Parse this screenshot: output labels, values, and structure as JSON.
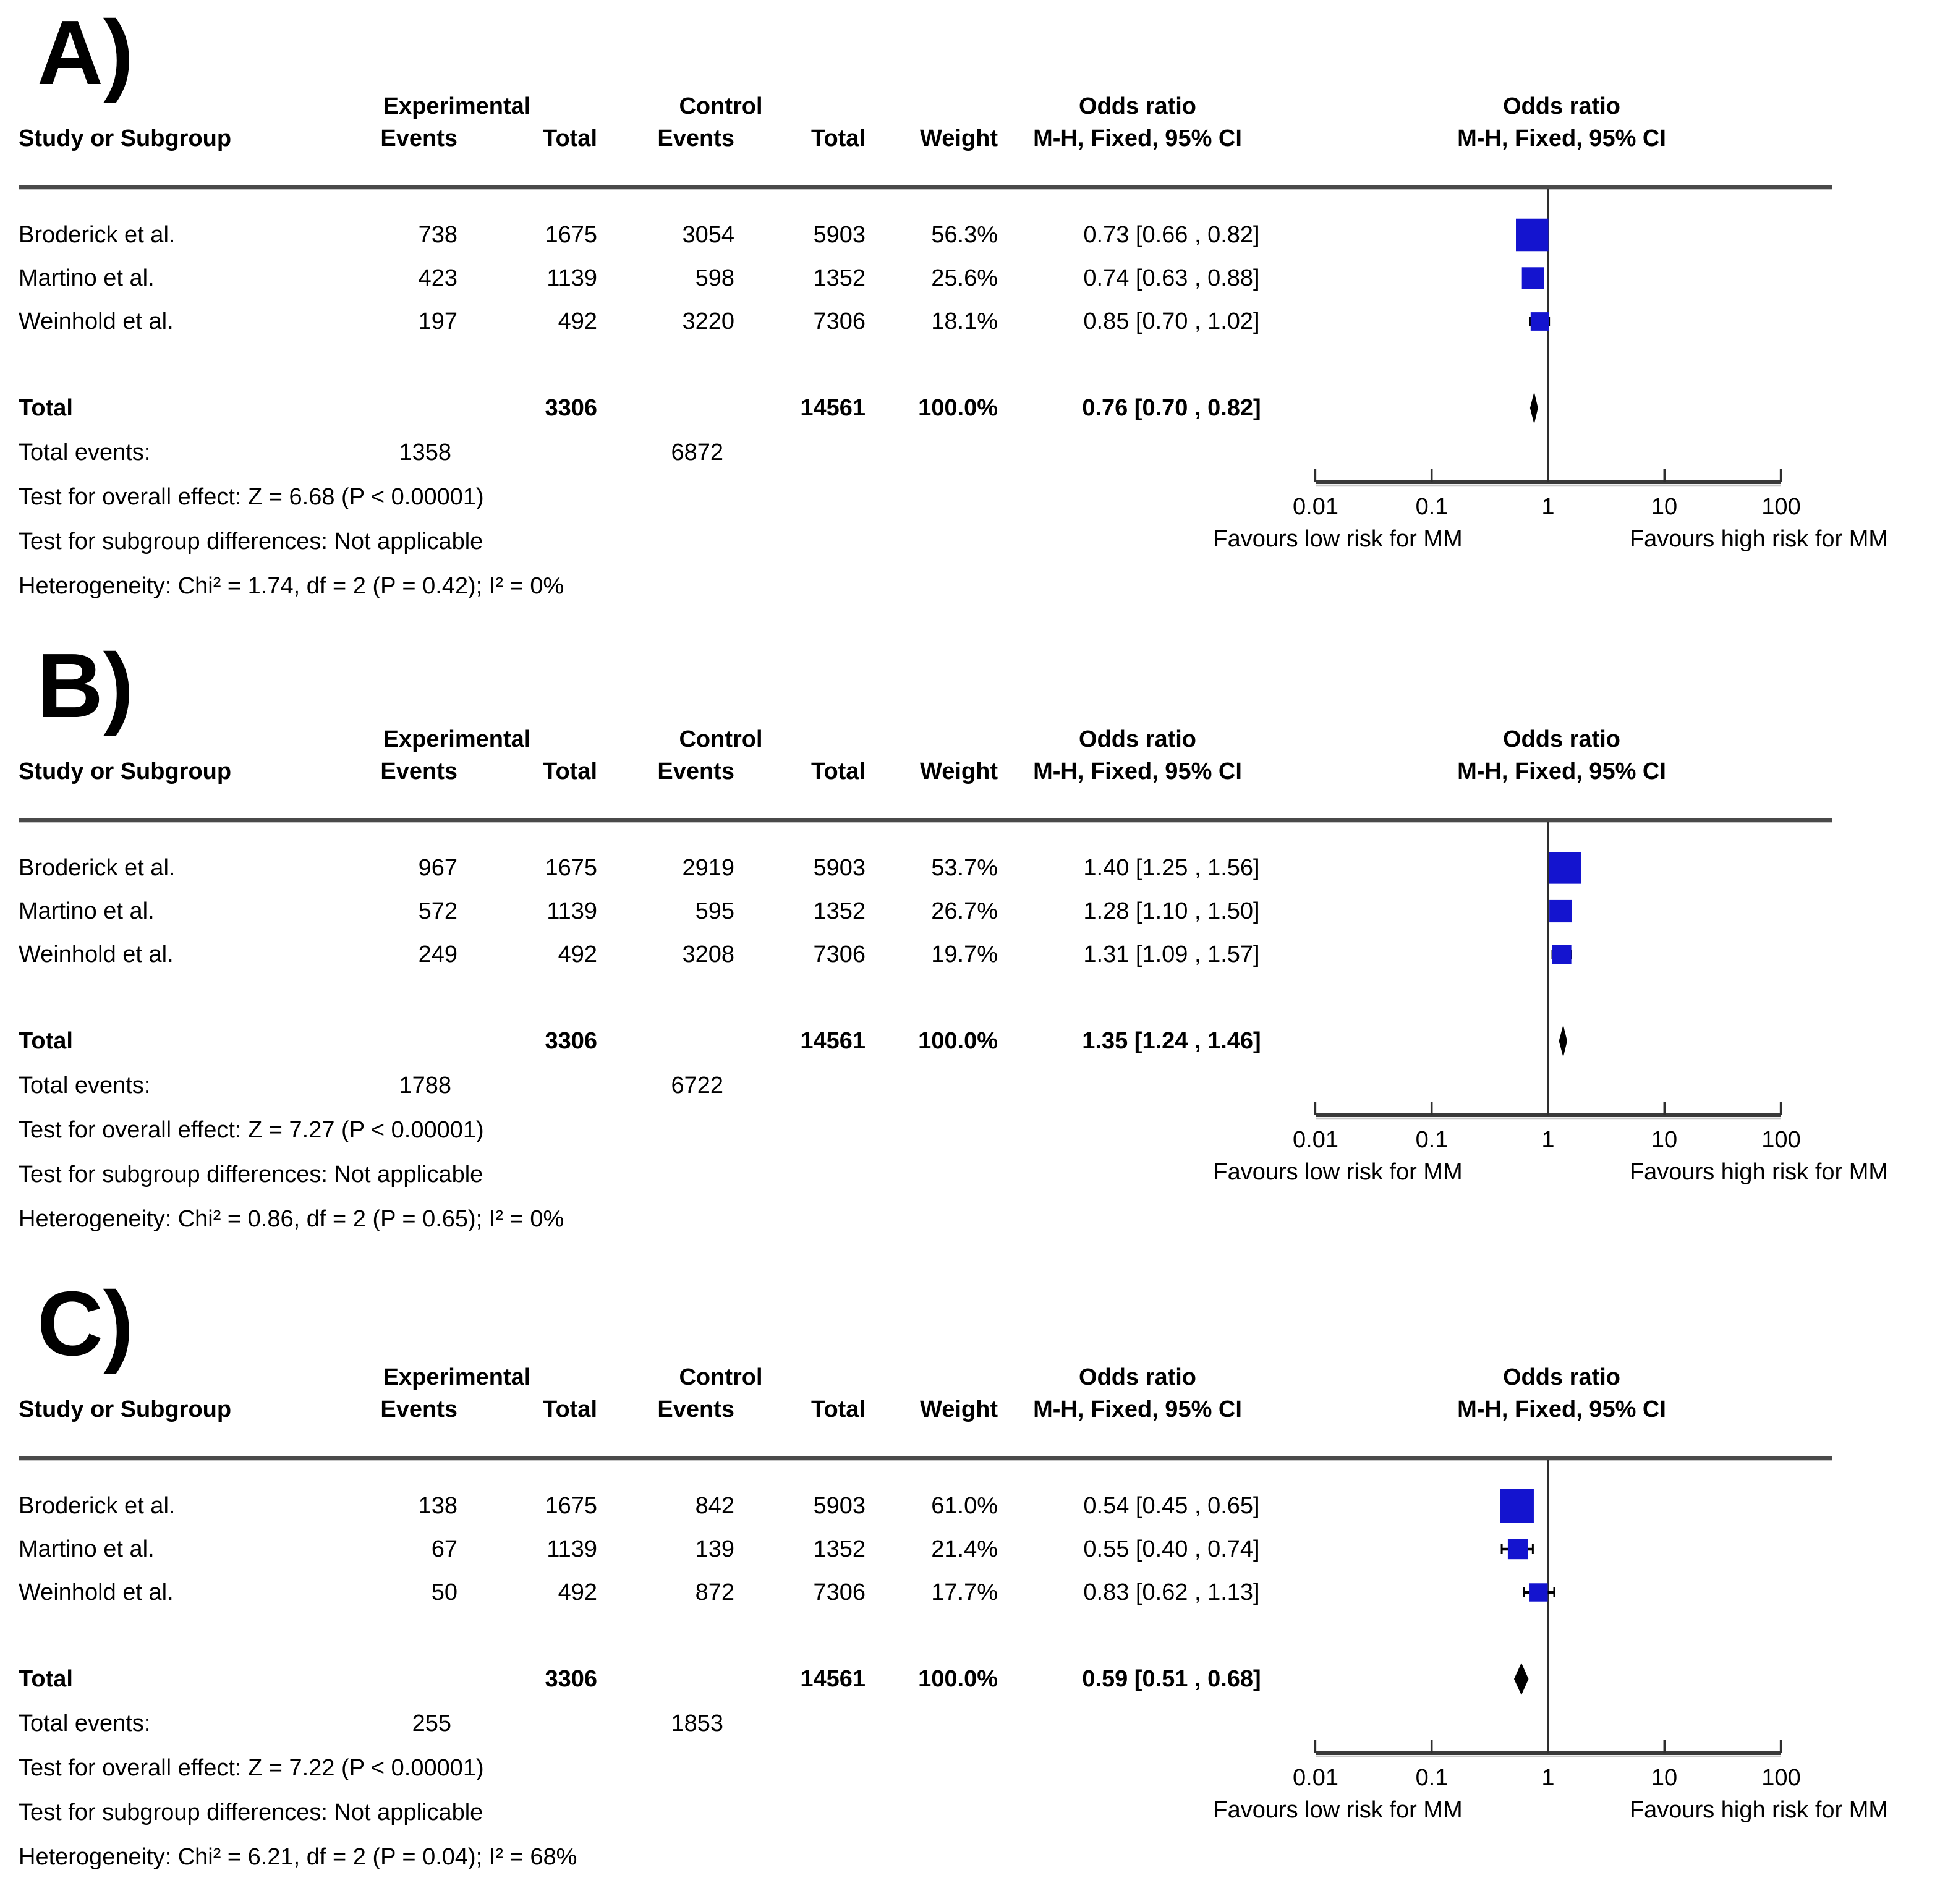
{
  "headers": {
    "experimental": "Experimental",
    "control": "Control",
    "odds_ratio": "Odds ratio",
    "study_or_subgroup": "Study or Subgroup",
    "events": "Events",
    "total": "Total",
    "weight": "Weight",
    "mh_fixed_ci": "M-H, Fixed, 95% CI"
  },
  "axis": {
    "ticks": [
      "0.01",
      "0.1",
      "1",
      "10",
      "100"
    ],
    "favours_left": "Favours low risk for MM",
    "favours_right": "Favours high risk for MM"
  },
  "colors": {
    "marker_blue": "#1414CF",
    "diamond_black": "#000000",
    "line_dark": "#3a3a3a",
    "line_light": "#c8c8c8"
  },
  "panels": [
    {
      "label": "A)",
      "rows": [
        {
          "study": "Broderick et al.",
          "events_exp": "738",
          "total_exp": "1675",
          "events_ctl": "3054",
          "total_ctl": "5903",
          "weight": "56.3%",
          "or_ci": "0.73 [0.66 , 0.82]"
        },
        {
          "study": "Martino et al.",
          "events_exp": "423",
          "total_exp": "1139",
          "events_ctl": "598",
          "total_ctl": "1352",
          "weight": "25.6%",
          "or_ci": "0.74 [0.63 , 0.88]"
        },
        {
          "study": "Weinhold et al.",
          "events_exp": "197",
          "total_exp": "492",
          "events_ctl": "3220",
          "total_ctl": "7306",
          "weight": "18.1%",
          "or_ci": "0.85 [0.70 , 1.02]"
        }
      ],
      "total_row": {
        "label": "Total",
        "total_exp": "3306",
        "total_ctl": "14561",
        "weight": "100.0%",
        "or_ci": "0.76 [0.70 , 0.82]"
      },
      "total_events": {
        "label": "Total events:",
        "exp": "1358",
        "ctl": "6872"
      },
      "overall_effect": "Test for overall effect: Z = 6.68 (P < 0.00001)",
      "subgroup_differences": "Test for subgroup differences: Not applicable",
      "heterogeneity": "Heterogeneity: Chi² = 1.74, df = 2 (P = 0.42); I² = 0%"
    },
    {
      "label": "B)",
      "rows": [
        {
          "study": "Broderick et al.",
          "events_exp": "967",
          "total_exp": "1675",
          "events_ctl": "2919",
          "total_ctl": "5903",
          "weight": "53.7%",
          "or_ci": "1.40 [1.25 , 1.56]"
        },
        {
          "study": "Martino et al.",
          "events_exp": "572",
          "total_exp": "1139",
          "events_ctl": "595",
          "total_ctl": "1352",
          "weight": "26.7%",
          "or_ci": "1.28 [1.10 , 1.50]"
        },
        {
          "study": "Weinhold et al.",
          "events_exp": "249",
          "total_exp": "492",
          "events_ctl": "3208",
          "total_ctl": "7306",
          "weight": "19.7%",
          "or_ci": "1.31 [1.09 , 1.57]"
        }
      ],
      "total_row": {
        "label": "Total",
        "total_exp": "3306",
        "total_ctl": "14561",
        "weight": "100.0%",
        "or_ci": "1.35 [1.24 , 1.46]"
      },
      "total_events": {
        "label": "Total events:",
        "exp": "1788",
        "ctl": "6722"
      },
      "overall_effect": "Test for overall effect: Z = 7.27 (P < 0.00001)",
      "subgroup_differences": "Test for subgroup differences: Not applicable",
      "heterogeneity": "Heterogeneity: Chi² = 0.86, df = 2 (P = 0.65); I² = 0%"
    },
    {
      "label": "C)",
      "rows": [
        {
          "study": "Broderick et al.",
          "events_exp": "138",
          "total_exp": "1675",
          "events_ctl": "842",
          "total_ctl": "5903",
          "weight": "61.0%",
          "or_ci": "0.54 [0.45 , 0.65]"
        },
        {
          "study": "Martino et al.",
          "events_exp": "67",
          "total_exp": "1139",
          "events_ctl": "139",
          "total_ctl": "1352",
          "weight": "21.4%",
          "or_ci": "0.55 [0.40 , 0.74]"
        },
        {
          "study": "Weinhold et al.",
          "events_exp": "50",
          "total_exp": "492",
          "events_ctl": "872",
          "total_ctl": "7306",
          "weight": "17.7%",
          "or_ci": "0.83 [0.62 , 1.13]"
        }
      ],
      "total_row": {
        "label": "Total",
        "total_exp": "3306",
        "total_ctl": "14561",
        "weight": "100.0%",
        "or_ci": "0.59 [0.51 , 0.68]"
      },
      "total_events": {
        "label": "Total events:",
        "exp": "255",
        "ctl": "1853"
      },
      "overall_effect": "Test for overall effect: Z = 7.22 (P < 0.00001)",
      "subgroup_differences": "Test for subgroup differences: Not applicable",
      "heterogeneity": "Heterogeneity: Chi² = 6.21, df = 2 (P = 0.04); I² = 68%"
    }
  ],
  "chart_data": [
    {
      "type": "scatter",
      "subtype": "forest_plot",
      "panel": "A)",
      "effect_measure": "Odds ratio, M-H, Fixed, 95% CI",
      "x_scale": "log",
      "xlim": [
        0.01,
        100
      ],
      "x_ticks": [
        0.01,
        0.1,
        1,
        10,
        100
      ],
      "axis_labels": {
        "left": "Favours low risk for MM",
        "right": "Favours high risk for MM"
      },
      "studies": [
        {
          "study": "Broderick et al.",
          "events_experimental": 738,
          "total_experimental": 1675,
          "events_control": 3054,
          "total_control": 5903,
          "weight_pct": 56.3,
          "or": 0.73,
          "ci_low": 0.66,
          "ci_high": 0.82
        },
        {
          "study": "Martino et al.",
          "events_experimental": 423,
          "total_experimental": 1139,
          "events_control": 598,
          "total_control": 1352,
          "weight_pct": 25.6,
          "or": 0.74,
          "ci_low": 0.63,
          "ci_high": 0.88
        },
        {
          "study": "Weinhold et al.",
          "events_experimental": 197,
          "total_experimental": 492,
          "events_control": 3220,
          "total_control": 7306,
          "weight_pct": 18.1,
          "or": 0.85,
          "ci_low": 0.7,
          "ci_high": 1.02
        }
      ],
      "total": {
        "total_experimental": 3306,
        "total_control": 14561,
        "weight_pct": 100.0,
        "or": 0.76,
        "ci_low": 0.7,
        "ci_high": 0.82,
        "events_experimental": 1358,
        "events_control": 6872
      },
      "tests": {
        "overall_effect": "Z = 6.68 (P < 0.00001)",
        "subgroup_differences": "Not applicable",
        "heterogeneity": "Chi² = 1.74, df = 2 (P = 0.42); I² = 0%"
      }
    },
    {
      "type": "scatter",
      "subtype": "forest_plot",
      "panel": "B)",
      "effect_measure": "Odds ratio, M-H, Fixed, 95% CI",
      "x_scale": "log",
      "xlim": [
        0.01,
        100
      ],
      "x_ticks": [
        0.01,
        0.1,
        1,
        10,
        100
      ],
      "axis_labels": {
        "left": "Favours low risk for MM",
        "right": "Favours high risk for MM"
      },
      "studies": [
        {
          "study": "Broderick et al.",
          "events_experimental": 967,
          "total_experimental": 1675,
          "events_control": 2919,
          "total_control": 5903,
          "weight_pct": 53.7,
          "or": 1.4,
          "ci_low": 1.25,
          "ci_high": 1.56
        },
        {
          "study": "Martino et al.",
          "events_experimental": 572,
          "total_experimental": 1139,
          "events_control": 595,
          "total_control": 1352,
          "weight_pct": 26.7,
          "or": 1.28,
          "ci_low": 1.1,
          "ci_high": 1.5
        },
        {
          "study": "Weinhold et al.",
          "events_experimental": 249,
          "total_experimental": 492,
          "events_control": 3208,
          "total_control": 7306,
          "weight_pct": 19.7,
          "or": 1.31,
          "ci_low": 1.09,
          "ci_high": 1.57
        }
      ],
      "total": {
        "total_experimental": 3306,
        "total_control": 14561,
        "weight_pct": 100.0,
        "or": 1.35,
        "ci_low": 1.24,
        "ci_high": 1.46,
        "events_experimental": 1788,
        "events_control": 6722
      },
      "tests": {
        "overall_effect": "Z = 7.27 (P < 0.00001)",
        "subgroup_differences": "Not applicable",
        "heterogeneity": "Chi² = 0.86, df = 2 (P = 0.65); I² = 0%"
      }
    },
    {
      "type": "scatter",
      "subtype": "forest_plot",
      "panel": "C)",
      "effect_measure": "Odds ratio, M-H, Fixed, 95% CI",
      "x_scale": "log",
      "xlim": [
        0.01,
        100
      ],
      "x_ticks": [
        0.01,
        0.1,
        1,
        10,
        100
      ],
      "axis_labels": {
        "left": "Favours low risk for MM",
        "right": "Favours high risk for MM"
      },
      "studies": [
        {
          "study": "Broderick et al.",
          "events_experimental": 138,
          "total_experimental": 1675,
          "events_control": 842,
          "total_control": 5903,
          "weight_pct": 61.0,
          "or": 0.54,
          "ci_low": 0.45,
          "ci_high": 0.65
        },
        {
          "study": "Martino et al.",
          "events_experimental": 67,
          "total_experimental": 1139,
          "events_control": 139,
          "total_control": 1352,
          "weight_pct": 21.4,
          "or": 0.55,
          "ci_low": 0.4,
          "ci_high": 0.74
        },
        {
          "study": "Weinhold et al.",
          "events_experimental": 50,
          "total_experimental": 492,
          "events_control": 872,
          "total_control": 7306,
          "weight_pct": 17.7,
          "or": 0.83,
          "ci_low": 0.62,
          "ci_high": 1.13
        }
      ],
      "total": {
        "total_experimental": 3306,
        "total_control": 14561,
        "weight_pct": 100.0,
        "or": 0.59,
        "ci_low": 0.51,
        "ci_high": 0.68,
        "events_experimental": 255,
        "events_control": 1853
      },
      "tests": {
        "overall_effect": "Z = 7.22 (P < 0.00001)",
        "subgroup_differences": "Not applicable",
        "heterogeneity": "Chi² = 6.21, df = 2 (P = 0.04); I² = 68%"
      }
    }
  ]
}
